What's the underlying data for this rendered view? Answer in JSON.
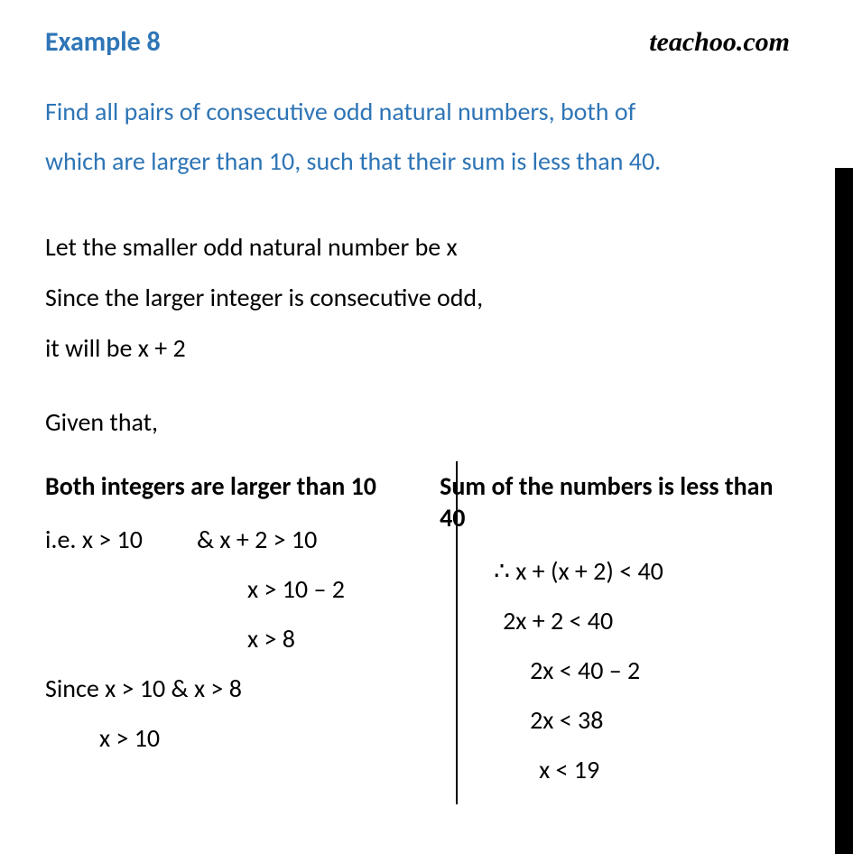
{
  "header": {
    "example_label": "Example  8",
    "brand": "teachoo.com"
  },
  "problem": {
    "line1": "Find all pairs of consecutive odd natural numbers, both of",
    "line2": "which are larger than 10, such that their sum is less than 40."
  },
  "setup": {
    "l1": "Let the smaller  odd natural number be x",
    "l2": "Since the larger integer is consecutive odd,",
    "l3": "it will be x + 2"
  },
  "given_label": "Given that,",
  "left": {
    "head": "Both integers are larger than 10",
    "r1a": "i.e. x > 10",
    "r1b": "&  x + 2 > 10",
    "r2": "x > 10 – 2",
    "r3": "x > 8",
    "r4": "Since x > 10 & x > 8",
    "r5": "x > 10"
  },
  "right": {
    "head": "Sum of the numbers is less than 40",
    "r1": "∴ x + (x + 2) < 40",
    "r2": "2x + 2 < 40",
    "r3": "2x < 40 – 2",
    "r4": "2x < 38",
    "r5": "x < 19"
  },
  "colors": {
    "accent": "#2e75b6",
    "text": "#000000",
    "bg": "#ffffff"
  },
  "typography": {
    "body_fontsize_pt": 21,
    "head_fontsize_pt": 22,
    "font_family": "Calibri"
  }
}
